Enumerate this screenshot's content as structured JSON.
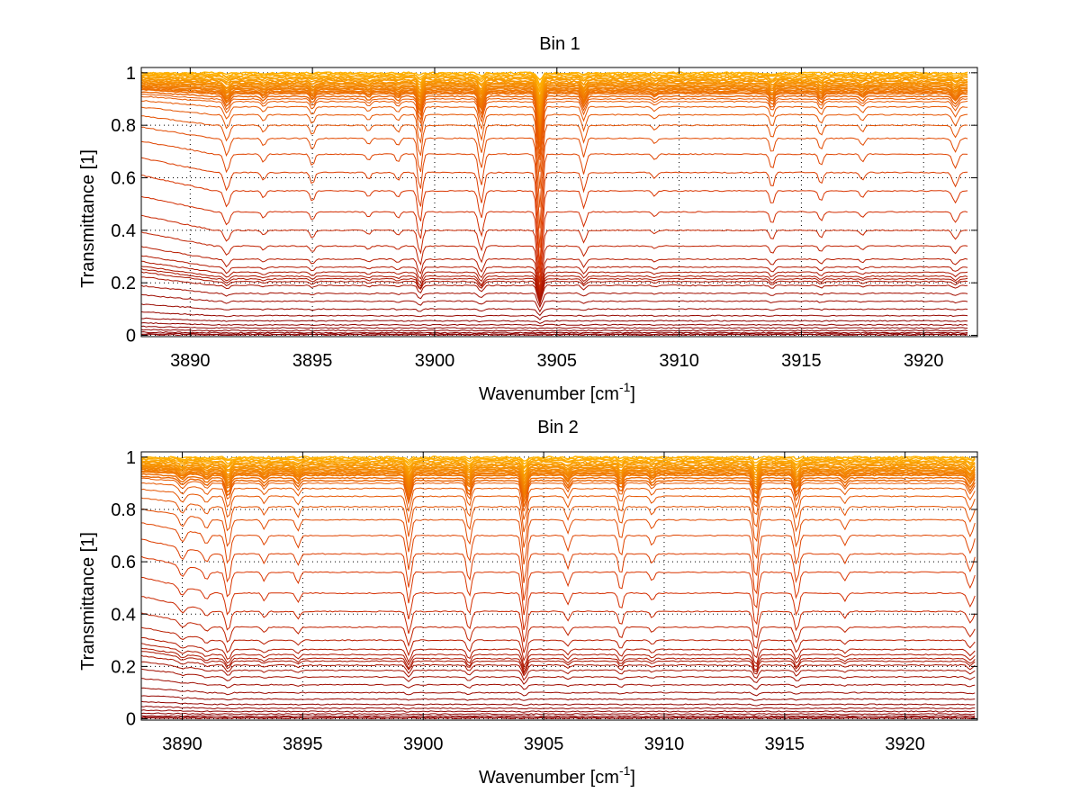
{
  "figure": {
    "background": "#ffffff"
  },
  "chart_data": [
    {
      "type": "line",
      "title": "Bin 1",
      "xlabel": "Wavenumber [cm",
      "xlabel_sup": "-1",
      "xlabel_tail": "]",
      "ylabel": "Transmittance [1]",
      "xlim": [
        3888.0,
        3922.2
      ],
      "ylim": [
        -0.005,
        1.02
      ],
      "xticks": [
        3890,
        3895,
        3900,
        3905,
        3910,
        3915,
        3920
      ],
      "xtick_labels": [
        "3890",
        "3895",
        "3900",
        "3905",
        "3910",
        "3915",
        "3920"
      ],
      "yticks": [
        0,
        0.2,
        0.4,
        0.6,
        0.8,
        1
      ],
      "ytick_labels": [
        "0",
        "0.2",
        "0.4",
        "0.6",
        "0.8",
        "1"
      ],
      "grid": true,
      "grid_style": "dotted",
      "x_range_data": [
        3888.0,
        3921.8
      ],
      "baselines": [
        1.0,
        0.995,
        0.99,
        0.985,
        0.98,
        0.975,
        0.97,
        0.965,
        0.96,
        0.955,
        0.95,
        0.945,
        0.94,
        0.935,
        0.93,
        0.925,
        0.92,
        0.91,
        0.9,
        0.89,
        0.87,
        0.84,
        0.8,
        0.75,
        0.69,
        0.62,
        0.55,
        0.47,
        0.4,
        0.34,
        0.29,
        0.26,
        0.24,
        0.225,
        0.215,
        0.205,
        0.19,
        0.16,
        0.13,
        0.1,
        0.075,
        0.055,
        0.04,
        0.028,
        0.018,
        0.01,
        0.005,
        0.002
      ],
      "absorption_lines": [
        {
          "x": 3891.5,
          "depth": 0.18,
          "width": 0.15
        },
        {
          "x": 3893.0,
          "depth": 0.08,
          "width": 0.12
        },
        {
          "x": 3895.0,
          "depth": 0.12,
          "width": 0.12
        },
        {
          "x": 3897.3,
          "depth": 0.07,
          "width": 0.12
        },
        {
          "x": 3898.5,
          "depth": 0.08,
          "width": 0.12
        },
        {
          "x": 3899.4,
          "depth": 0.38,
          "width": 0.12
        },
        {
          "x": 3901.9,
          "depth": 0.32,
          "width": 0.14
        },
        {
          "x": 3904.3,
          "depth": 0.95,
          "width": 0.13
        },
        {
          "x": 3906.1,
          "depth": 0.2,
          "width": 0.12
        },
        {
          "x": 3909.0,
          "depth": 0.06,
          "width": 0.12
        },
        {
          "x": 3913.8,
          "depth": 0.16,
          "width": 0.12
        },
        {
          "x": 3915.8,
          "depth": 0.12,
          "width": 0.12
        },
        {
          "x": 3917.5,
          "depth": 0.08,
          "width": 0.12
        },
        {
          "x": 3921.3,
          "depth": 0.14,
          "width": 0.15
        }
      ],
      "color_low": "#8b0000",
      "color_mid": "#d73000",
      "color_high": "#ffb400"
    },
    {
      "type": "line",
      "title": "Bin 2",
      "xlabel": "Wavenumber [cm",
      "xlabel_sup": "-1",
      "xlabel_tail": "]",
      "ylabel": "Transmittance [1]",
      "xlim": [
        3888.3,
        3923.0
      ],
      "ylim": [
        -0.005,
        1.02
      ],
      "xticks": [
        3890,
        3895,
        3900,
        3905,
        3910,
        3915,
        3920
      ],
      "xtick_labels": [
        "3890",
        "3895",
        "3900",
        "3905",
        "3910",
        "3915",
        "3920"
      ],
      "yticks": [
        0,
        0.2,
        0.4,
        0.6,
        0.8,
        1
      ],
      "ytick_labels": [
        "0",
        "0.2",
        "0.4",
        "0.6",
        "0.8",
        "1"
      ],
      "grid": true,
      "grid_style": "dotted",
      "x_range_data": [
        3888.3,
        3922.9
      ],
      "baselines": [
        1.0,
        0.995,
        0.99,
        0.985,
        0.98,
        0.975,
        0.97,
        0.965,
        0.96,
        0.955,
        0.95,
        0.945,
        0.94,
        0.935,
        0.93,
        0.92,
        0.91,
        0.9,
        0.88,
        0.85,
        0.81,
        0.76,
        0.7,
        0.63,
        0.56,
        0.48,
        0.41,
        0.35,
        0.3,
        0.265,
        0.245,
        0.23,
        0.22,
        0.205,
        0.185,
        0.16,
        0.13,
        0.1,
        0.075,
        0.055,
        0.04,
        0.028,
        0.018,
        0.01,
        0.005,
        0.002
      ],
      "absorption_lines": [
        {
          "x": 3890.0,
          "depth": 0.12,
          "width": 0.18
        },
        {
          "x": 3891.0,
          "depth": 0.1,
          "width": 0.15
        },
        {
          "x": 3891.9,
          "depth": 0.3,
          "width": 0.14
        },
        {
          "x": 3893.4,
          "depth": 0.1,
          "width": 0.12
        },
        {
          "x": 3894.8,
          "depth": 0.12,
          "width": 0.12
        },
        {
          "x": 3899.4,
          "depth": 0.35,
          "width": 0.13
        },
        {
          "x": 3901.9,
          "depth": 0.28,
          "width": 0.13
        },
        {
          "x": 3904.2,
          "depth": 0.5,
          "width": 0.13
        },
        {
          "x": 3906.0,
          "depth": 0.15,
          "width": 0.12
        },
        {
          "x": 3908.2,
          "depth": 0.22,
          "width": 0.12
        },
        {
          "x": 3909.5,
          "depth": 0.1,
          "width": 0.12
        },
        {
          "x": 3913.8,
          "depth": 0.45,
          "width": 0.13
        },
        {
          "x": 3915.5,
          "depth": 0.3,
          "width": 0.13
        },
        {
          "x": 3917.5,
          "depth": 0.1,
          "width": 0.12
        },
        {
          "x": 3922.7,
          "depth": 0.18,
          "width": 0.15
        }
      ],
      "color_low": "#8b0000",
      "color_mid": "#d73000",
      "color_high": "#ffb400"
    }
  ]
}
